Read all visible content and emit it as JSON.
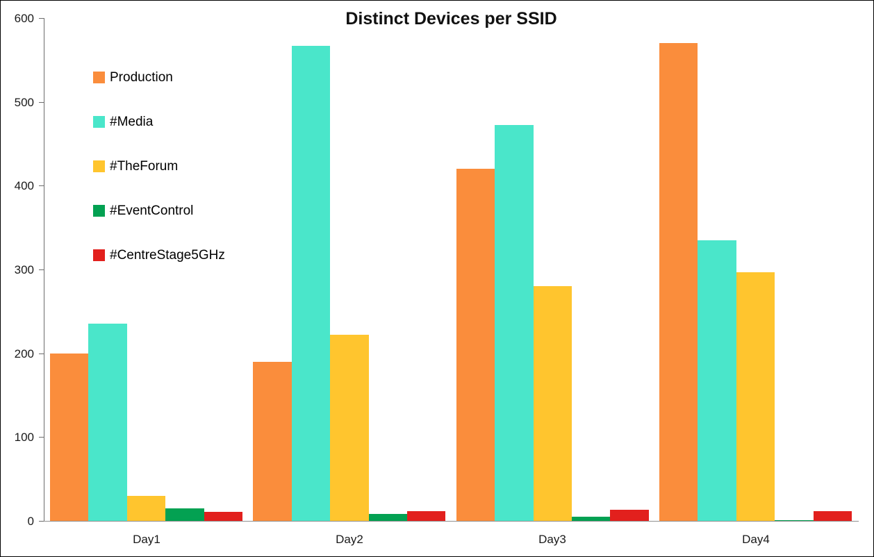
{
  "chart_data": {
    "type": "bar",
    "title": "Distinct Devices per SSID",
    "xlabel": "",
    "ylabel": "",
    "categories": [
      "Day1",
      "Day2",
      "Day3",
      "Day4"
    ],
    "series": [
      {
        "name": "Production",
        "color": "#FA8D3C",
        "values": [
          200,
          190,
          420,
          570
        ]
      },
      {
        "name": "#Media",
        "color": "#4AE6CA",
        "values": [
          235,
          567,
          472,
          335
        ]
      },
      {
        "name": "#TheForum",
        "color": "#FFC52E",
        "values": [
          30,
          222,
          280,
          297
        ]
      },
      {
        "name": "#EventControl",
        "color": "#03A152",
        "values": [
          15,
          8,
          5,
          1
        ]
      },
      {
        "name": "#CentreStage5GHz",
        "color": "#E2201D",
        "values": [
          11,
          12,
          13,
          12
        ]
      }
    ],
    "ylim": [
      0,
      600
    ],
    "yticks": [
      0,
      100,
      200,
      300,
      400,
      500,
      600
    ],
    "grid": false,
    "legend_position": "upper-left-vertical",
    "bar_grouping": "grouped"
  },
  "colors": {
    "background": "#ffffff",
    "axis_line": "#6b6b6b",
    "baseline": "#8f8f8f",
    "text": "#1a1a1a"
  }
}
